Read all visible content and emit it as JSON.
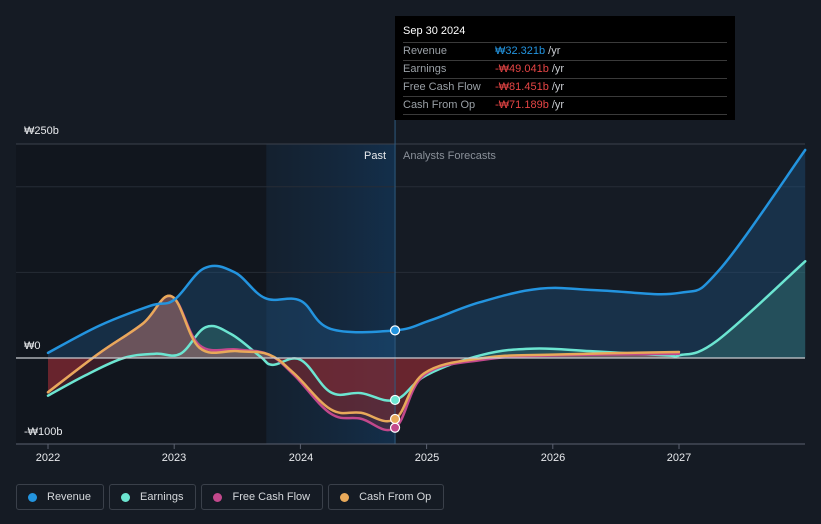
{
  "tooltip": {
    "date": "Sep 30 2024",
    "rows": [
      {
        "label": "Revenue",
        "value": "₩32.321b",
        "unit": "/yr",
        "sign": "pos"
      },
      {
        "label": "Earnings",
        "value": "-₩49.041b",
        "unit": "/yr",
        "sign": "neg"
      },
      {
        "label": "Free Cash Flow",
        "value": "-₩81.451b",
        "unit": "/yr",
        "sign": "neg"
      },
      {
        "label": "Cash From Op",
        "value": "-₩71.189b",
        "unit": "/yr",
        "sign": "neg"
      }
    ]
  },
  "regions": {
    "past_label": "Past",
    "forecast_label": "Analysts Forecasts"
  },
  "legend": [
    {
      "label": "Revenue",
      "color": "#2394df"
    },
    {
      "label": "Earnings",
      "color": "#6ce5d1"
    },
    {
      "label": "Free Cash Flow",
      "color": "#c2488c"
    },
    {
      "label": "Cash From Op",
      "color": "#e8a95a"
    }
  ],
  "chart_data": {
    "type": "line",
    "title": "",
    "xlabel": "",
    "ylabel": "",
    "currency": "₩",
    "unit": "b",
    "y_ticks": [
      {
        "value": 250,
        "label": "₩250b"
      },
      {
        "value": 0,
        "label": "₩0"
      },
      {
        "value": -100,
        "label": "-₩100b"
      }
    ],
    "ylim": [
      -100,
      250
    ],
    "gridlines": [
      250,
      200,
      100,
      0
    ],
    "x_ticks": [
      {
        "value": 2022,
        "label": "2022"
      },
      {
        "value": 2023,
        "label": "2023"
      },
      {
        "value": 2024,
        "label": "2024"
      },
      {
        "value": 2025,
        "label": "2025"
      },
      {
        "value": 2026,
        "label": "2026"
      },
      {
        "value": 2027,
        "label": "2027"
      }
    ],
    "xlim": [
      2021.75,
      2028.0
    ],
    "past_start": 2022.0,
    "highlight_start": 2023.73,
    "present": 2024.75,
    "series": [
      {
        "name": "Revenue",
        "color": "#2394df",
        "points": [
          [
            2022.0,
            6
          ],
          [
            2022.41,
            38
          ],
          [
            2022.81,
            61
          ],
          [
            2023.0,
            68
          ],
          [
            2023.24,
            105
          ],
          [
            2023.48,
            100
          ],
          [
            2023.72,
            70
          ],
          [
            2024.0,
            67
          ],
          [
            2024.24,
            34
          ],
          [
            2024.75,
            32.3
          ],
          [
            2025.03,
            44
          ],
          [
            2025.42,
            65
          ],
          [
            2025.9,
            81
          ],
          [
            2026.37,
            79
          ],
          [
            2027.0,
            76
          ],
          [
            2027.32,
            103
          ],
          [
            2028.0,
            243
          ]
        ]
      },
      {
        "name": "Earnings",
        "color": "#6ce5d1",
        "points": [
          [
            2022.0,
            -44
          ],
          [
            2022.3,
            -20
          ],
          [
            2022.6,
            0
          ],
          [
            2022.85,
            5
          ],
          [
            2023.05,
            5
          ],
          [
            2023.25,
            36
          ],
          [
            2023.45,
            28
          ],
          [
            2023.68,
            2
          ],
          [
            2023.78,
            -8
          ],
          [
            2024.0,
            -2
          ],
          [
            2024.24,
            -40
          ],
          [
            2024.48,
            -41
          ],
          [
            2024.75,
            -49
          ],
          [
            2025.0,
            -20
          ],
          [
            2025.45,
            4
          ],
          [
            2025.85,
            11
          ],
          [
            2026.3,
            8
          ],
          [
            2026.9,
            3
          ],
          [
            2027.0,
            3
          ],
          [
            2027.3,
            20
          ],
          [
            2028.0,
            113
          ]
        ]
      },
      {
        "name": "Free Cash Flow",
        "color": "#c2488c",
        "points": [
          [
            2022.0,
            -40
          ],
          [
            2022.4,
            5
          ],
          [
            2022.75,
            40
          ],
          [
            2022.98,
            72
          ],
          [
            2023.2,
            15
          ],
          [
            2023.5,
            10
          ],
          [
            2023.75,
            4
          ],
          [
            2023.95,
            -20
          ],
          [
            2024.24,
            -65
          ],
          [
            2024.48,
            -71
          ],
          [
            2024.75,
            -81.5
          ],
          [
            2024.98,
            -20
          ],
          [
            2025.45,
            -2
          ],
          [
            2026.0,
            3
          ],
          [
            2027.0,
            5
          ]
        ]
      },
      {
        "name": "Cash From Op",
        "color": "#e8a95a",
        "points": [
          [
            2022.0,
            -40
          ],
          [
            2022.4,
            5
          ],
          [
            2022.75,
            40
          ],
          [
            2022.98,
            72
          ],
          [
            2023.2,
            12
          ],
          [
            2023.5,
            8
          ],
          [
            2023.75,
            4
          ],
          [
            2023.95,
            -18
          ],
          [
            2024.24,
            -60
          ],
          [
            2024.48,
            -64
          ],
          [
            2024.75,
            -71.2
          ],
          [
            2024.98,
            -18
          ],
          [
            2025.45,
            0
          ],
          [
            2026.0,
            4
          ],
          [
            2027.0,
            7
          ]
        ]
      }
    ]
  }
}
